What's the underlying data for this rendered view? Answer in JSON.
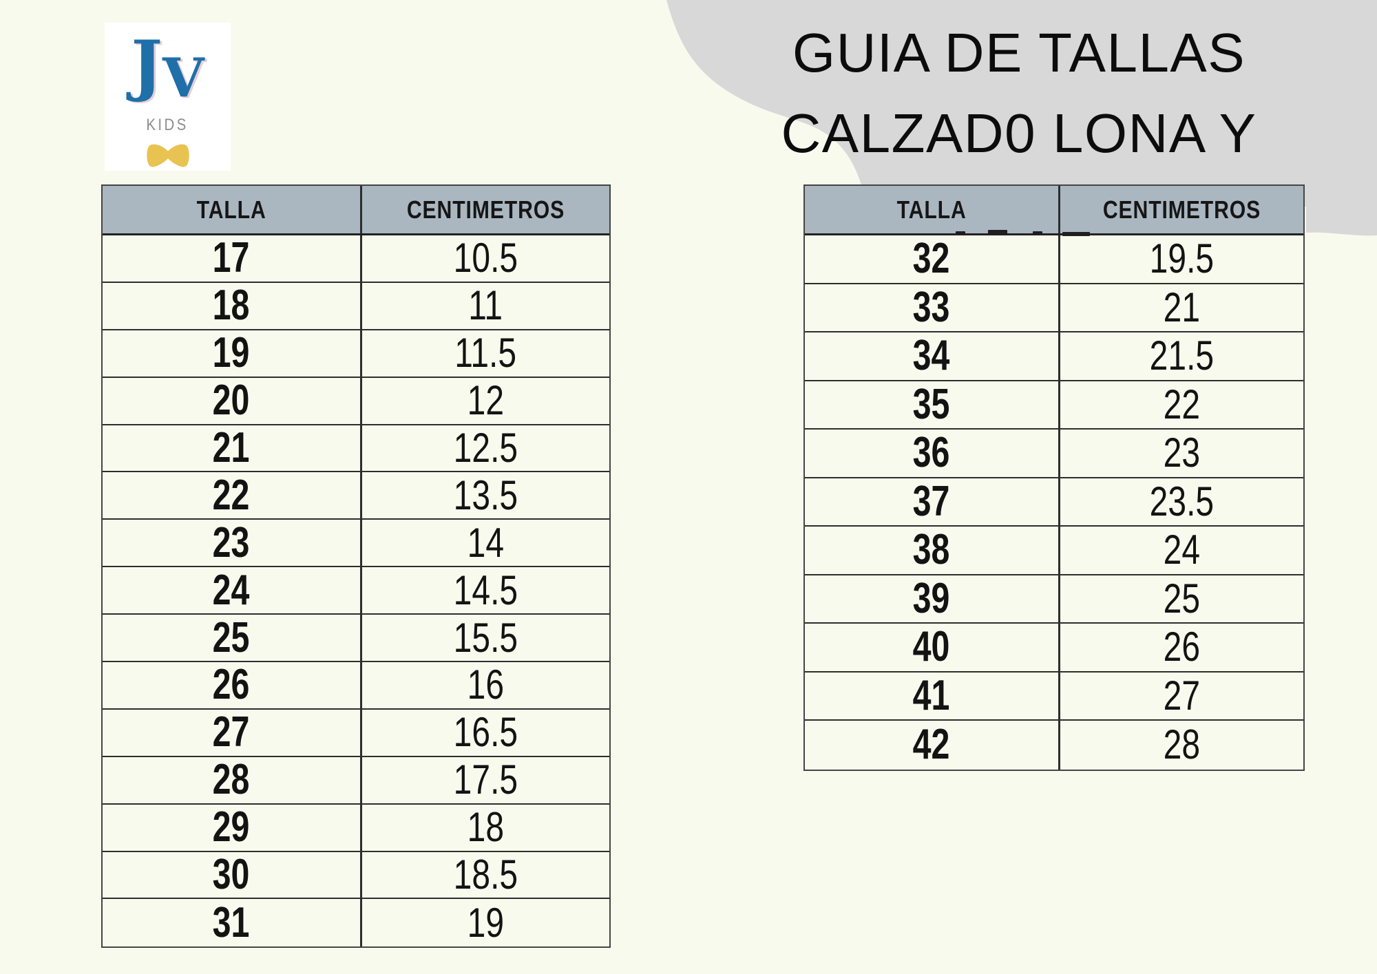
{
  "theme": {
    "background": "#f9faee",
    "blob": "#d8d8d8",
    "header_bg": "#aab7c0",
    "text": "#131313",
    "logo_blue": "#1f6fa9",
    "logo_gray": "#8d8d8d",
    "bow_yellow": "#e8c351"
  },
  "logo": {
    "letter_j": "J",
    "letter_v": "V",
    "sub": "KIDS"
  },
  "title": {
    "line1": "GUIA DE TALLAS",
    "line2": "CALZAD0 LONA Y"
  },
  "tables": {
    "columns": [
      "TALLA",
      "CENTIMETROS"
    ],
    "left": {
      "rows": [
        [
          "17",
          "10.5"
        ],
        [
          "18",
          "11"
        ],
        [
          "19",
          "11.5"
        ],
        [
          "20",
          "12"
        ],
        [
          "21",
          "12.5"
        ],
        [
          "22",
          "13.5"
        ],
        [
          "23",
          "14"
        ],
        [
          "24",
          "14.5"
        ],
        [
          "25",
          "15.5"
        ],
        [
          "26",
          "16"
        ],
        [
          "27",
          "16.5"
        ],
        [
          "28",
          "17.5"
        ],
        [
          "29",
          "18"
        ],
        [
          "30",
          "18.5"
        ],
        [
          "31",
          "19"
        ]
      ]
    },
    "right": {
      "rows": [
        [
          "32",
          "19.5"
        ],
        [
          "33",
          "21"
        ],
        [
          "34",
          "21.5"
        ],
        [
          "35",
          "22"
        ],
        [
          "36",
          "23"
        ],
        [
          "37",
          "23.5"
        ],
        [
          "38",
          "24"
        ],
        [
          "39",
          "25"
        ],
        [
          "40",
          "26"
        ],
        [
          "41",
          "27"
        ],
        [
          "42",
          "28"
        ]
      ]
    }
  }
}
